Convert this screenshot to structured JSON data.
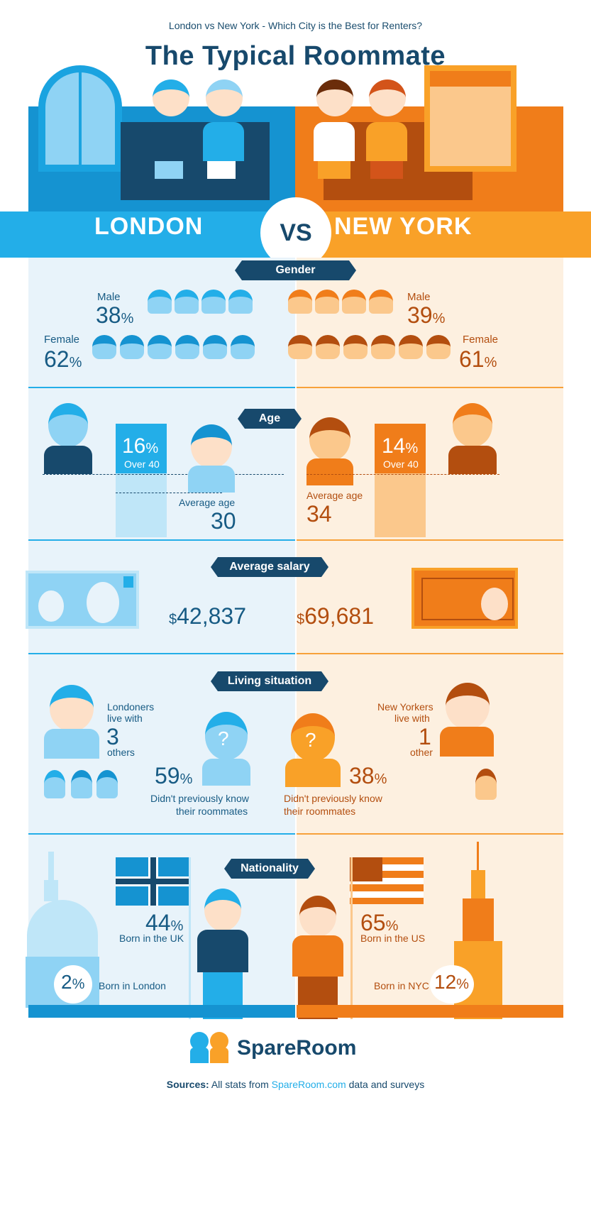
{
  "header": {
    "subtitle": "London vs New York - Which City is the Best for Renters?",
    "title": "The Typical Roommate"
  },
  "banner": {
    "left": "LONDON",
    "vs": "VS",
    "right": "NEW YORK"
  },
  "sections": {
    "gender": "Gender",
    "age": "Age",
    "salary": "Average salary",
    "living": "Living situation",
    "nationality": "Nationality"
  },
  "london": {
    "male_label": "Male",
    "male_value": "38",
    "pct": "%",
    "female_label": "Female",
    "female_value": "62",
    "over40_value": "16",
    "over40_label": "Over 40",
    "avg_age_label": "Average age",
    "avg_age_value": "30",
    "salary_currency": "$",
    "salary_value": "42,837",
    "live_line1": "Londoners",
    "live_line2": "live with",
    "live_count": "3",
    "live_others": "others",
    "unknown_value": "59",
    "unknown_line1": "Didn't previously know",
    "unknown_line2": "their roommates",
    "born_country_value": "44",
    "born_country_label": "Born in the UK",
    "born_city_value": "2",
    "born_city_label": "Born in London"
  },
  "newyork": {
    "male_label": "Male",
    "male_value": "39",
    "pct": "%",
    "female_label": "Female",
    "female_value": "61",
    "over40_value": "14",
    "over40_label": "Over 40",
    "avg_age_label": "Average age",
    "avg_age_value": "34",
    "salary_currency": "$",
    "salary_value": "69,681",
    "live_line1": "New Yorkers",
    "live_line2": "live with",
    "live_count": "1",
    "live_others": "other",
    "unknown_value": "38",
    "unknown_line1": "Didn't previously know",
    "unknown_line2": "their roommates",
    "born_country_value": "65",
    "born_country_label": "Born in the US",
    "born_city_value": "12",
    "born_city_label": "Born in NYC"
  },
  "footer": {
    "brand": "SpareRoom",
    "sources_label": "Sources:",
    "sources_text1": "All stats from",
    "sources_link": "SpareRoom.com",
    "sources_text2": "data and surveys"
  },
  "colors": {
    "navy": "#17496c",
    "blue": "#23aee8",
    "orange": "#f07d1a",
    "brown": "#b34e0f"
  }
}
